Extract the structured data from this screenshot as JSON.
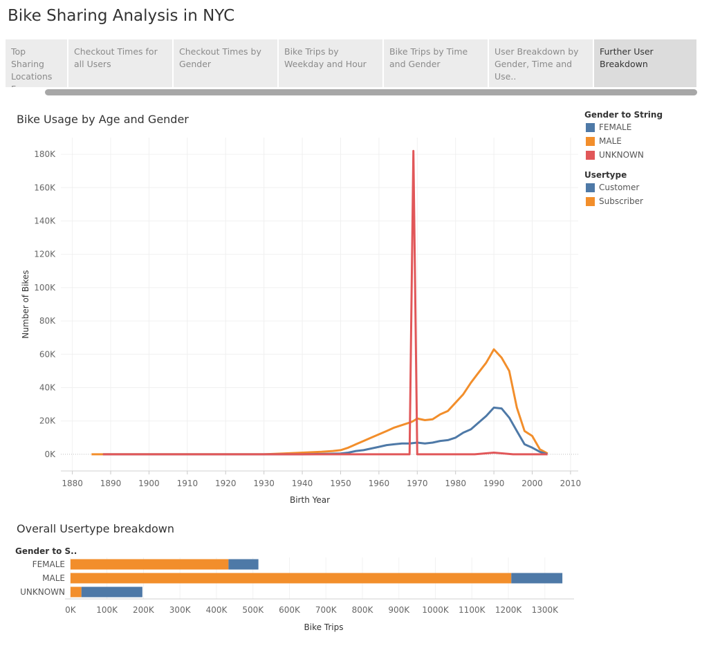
{
  "page_title": "Bike Sharing Analysis in NYC",
  "tabs": [
    {
      "label": "Top Sharing Locations Fo..",
      "active": false
    },
    {
      "label": "Checkout Times for all Users",
      "active": false
    },
    {
      "label": "Checkout Times by Gender",
      "active": false
    },
    {
      "label": "Bike Trips by Weekday and Hour",
      "active": false
    },
    {
      "label": "Bike Trips by Time and Gender",
      "active": false
    },
    {
      "label": "User Breakdown by Gender, Time and Use..",
      "active": false
    },
    {
      "label": "Further User Breakdown",
      "active": true
    }
  ],
  "legend": {
    "gender_title": "Gender to String",
    "gender_items": [
      {
        "label": "FEMALE",
        "color": "#4e79a7"
      },
      {
        "label": "MALE",
        "color": "#f28e2b"
      },
      {
        "label": "UNKNOWN",
        "color": "#e15759"
      }
    ],
    "usertype_title": "Usertype",
    "usertype_items": [
      {
        "label": "Customer",
        "color": "#4e79a7"
      },
      {
        "label": "Subscriber",
        "color": "#f28e2b"
      }
    ]
  },
  "chart_data": [
    {
      "type": "line",
      "title": "Bike Usage by Age and Gender",
      "xlabel": "Birth Year",
      "ylabel": "Number of Bikes",
      "xlim": [
        1877,
        2012
      ],
      "ylim": [
        -10000,
        190000
      ],
      "xticks": [
        1880,
        1890,
        1900,
        1910,
        1920,
        1930,
        1940,
        1950,
        1960,
        1970,
        1980,
        1990,
        2000,
        2010
      ],
      "yticks": [
        0,
        20000,
        40000,
        60000,
        80000,
        100000,
        120000,
        140000,
        160000,
        180000
      ],
      "ytick_labels": [
        "0K",
        "20K",
        "40K",
        "60K",
        "80K",
        "100K",
        "120K",
        "140K",
        "160K",
        "180K"
      ],
      "grid": true,
      "series": [
        {
          "name": "MALE",
          "color": "#f28e2b",
          "x": [
            1885,
            1888,
            1895,
            1900,
            1910,
            1920,
            1930,
            1935,
            1940,
            1945,
            1948,
            1950,
            1952,
            1954,
            1956,
            1958,
            1960,
            1962,
            1964,
            1966,
            1968,
            1969,
            1970,
            1972,
            1974,
            1976,
            1978,
            1980,
            1982,
            1984,
            1986,
            1988,
            1989,
            1990,
            1992,
            1994,
            1996,
            1998,
            2000,
            2002,
            2004
          ],
          "y": [
            0,
            0,
            0,
            0,
            0,
            0,
            0,
            500,
            1000,
            1500,
            2000,
            2500,
            4000,
            6000,
            8000,
            10000,
            12000,
            14000,
            16000,
            17500,
            19000,
            20000,
            21500,
            20500,
            21000,
            24000,
            26000,
            31000,
            36000,
            43000,
            49000,
            55000,
            59000,
            63000,
            58000,
            50000,
            28000,
            14000,
            11000,
            3000,
            500
          ]
        },
        {
          "name": "FEMALE",
          "color": "#4e79a7",
          "x": [
            1888,
            1900,
            1910,
            1920,
            1930,
            1940,
            1945,
            1950,
            1952,
            1954,
            1956,
            1958,
            1960,
            1962,
            1964,
            1966,
            1968,
            1970,
            1972,
            1974,
            1976,
            1978,
            1980,
            1982,
            1984,
            1986,
            1988,
            1990,
            1992,
            1994,
            1996,
            1998,
            2000,
            2002,
            2004
          ],
          "y": [
            0,
            0,
            0,
            0,
            0,
            0,
            200,
            500,
            1000,
            2000,
            2500,
            3500,
            4500,
            5500,
            6000,
            6500,
            6500,
            7000,
            6500,
            7000,
            8000,
            8500,
            10000,
            13000,
            15000,
            19000,
            23000,
            28000,
            27500,
            22000,
            14000,
            6000,
            4000,
            1500,
            0
          ]
        },
        {
          "name": "UNKNOWN",
          "color": "#e15759",
          "x": [
            1888,
            1900,
            1920,
            1940,
            1960,
            1968,
            1969,
            1970,
            1975,
            1980,
            1985,
            1990,
            1995,
            2000,
            2004
          ],
          "y": [
            0,
            0,
            0,
            0,
            0,
            0,
            182000,
            0,
            0,
            0,
            0,
            1000,
            0,
            0,
            0
          ]
        }
      ]
    },
    {
      "type": "bar",
      "orientation": "horizontal",
      "stacked": true,
      "title": "Overall Usertype breakdown",
      "xlabel": "Bike Trips",
      "ylabel": "Gender to S..",
      "xlim": [
        -15000,
        1380000
      ],
      "xticks": [
        0,
        100000,
        200000,
        300000,
        400000,
        500000,
        600000,
        700000,
        800000,
        900000,
        1000000,
        1100000,
        1200000,
        1300000
      ],
      "xtick_labels": [
        "0K",
        "100K",
        "200K",
        "300K",
        "400K",
        "500K",
        "600K",
        "700K",
        "800K",
        "900K",
        "1000K",
        "1100K",
        "1200K",
        "1300K"
      ],
      "categories": [
        "FEMALE",
        "MALE",
        "UNKNOWN"
      ],
      "series": [
        {
          "name": "Subscriber",
          "color": "#f28e2b",
          "values": [
            433000,
            1208000,
            30000
          ]
        },
        {
          "name": "Customer",
          "color": "#4e79a7",
          "values": [
            82000,
            140000,
            167000
          ]
        }
      ]
    }
  ]
}
